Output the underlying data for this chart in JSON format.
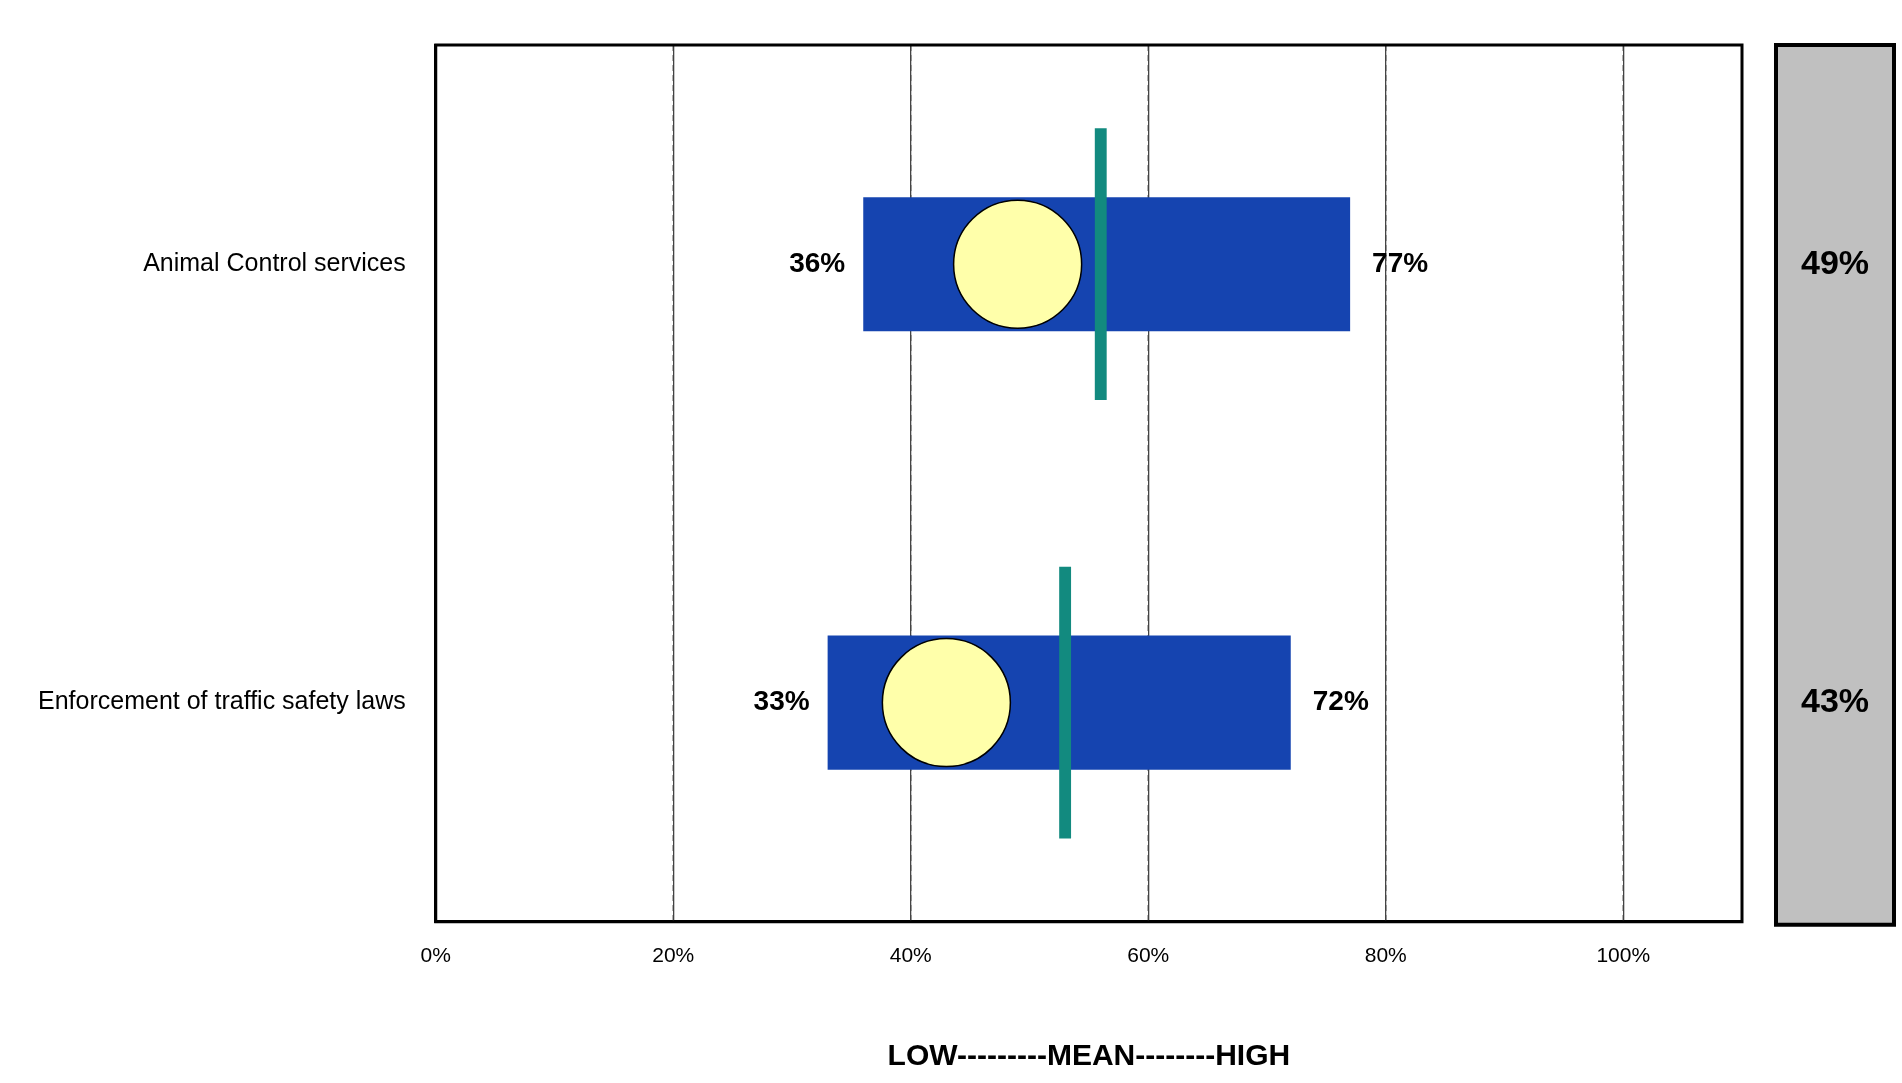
{
  "chart_data": {
    "type": "bar",
    "orientation": "horizontal",
    "categories": [
      "Animal Control services",
      "Enforcement of traffic safety laws"
    ],
    "series": [
      {
        "type": "bar",
        "color": "#1544b0",
        "base": [
          36,
          33
        ],
        "values": [
          41,
          39
        ]
      },
      {
        "type": "scatter",
        "marker": "circle",
        "color": "#ffffaa",
        "values": [
          49,
          43
        ],
        "value_labels": [
          "49%",
          "43%"
        ]
      },
      {
        "color": "#128a7f",
        "base": [
          55.5,
          52.5
        ],
        "values": [
          1,
          1
        ]
      }
    ],
    "xlim": [
      0,
      110
    ],
    "xticks": [
      {
        "value": 0,
        "label": "0%"
      },
      {
        "value": 20,
        "label": "20%"
      },
      {
        "value": 40,
        "label": "40%"
      },
      {
        "value": 60,
        "label": "60%"
      },
      {
        "value": 80,
        "label": "80%"
      },
      {
        "value": 100,
        "label": "100%"
      }
    ],
    "xlabel": "LOW---------MEAN--------HIGH",
    "grid": "x",
    "annotations": [
      {
        "text": "36%",
        "x": 36,
        "y": "Animal Control services"
      },
      {
        "text": "77%",
        "x": 77,
        "y": "Animal Control services"
      },
      {
        "text": "33%",
        "x": 33,
        "y": "Enforcement of traffic safety laws"
      },
      {
        "text": "72%",
        "x": 72,
        "y": "Enforcement of traffic safety laws"
      }
    ]
  }
}
